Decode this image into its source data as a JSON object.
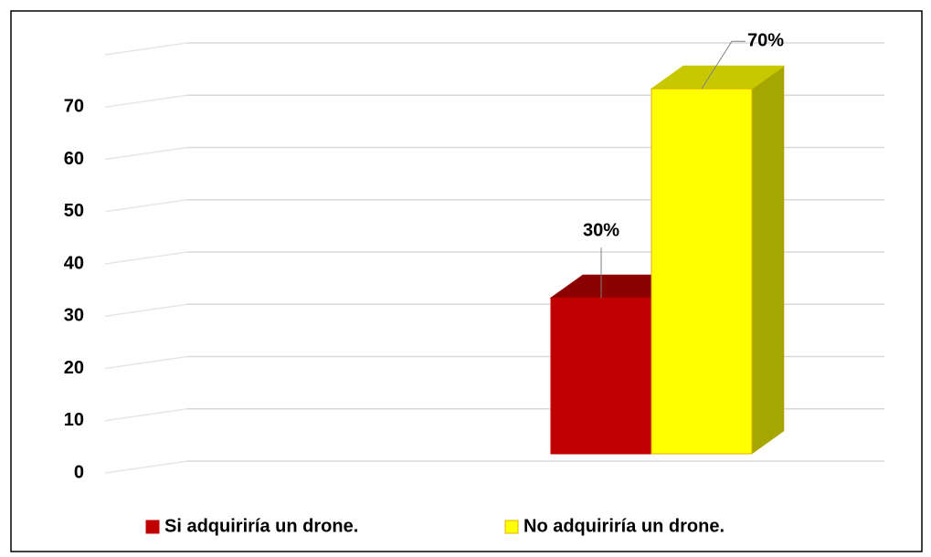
{
  "chart_data": {
    "type": "bar3d",
    "categories": [
      null
    ],
    "series": [
      {
        "name": "Si adquiriría un drone.",
        "color": "#c00000",
        "values": [
          30
        ],
        "value_labels": [
          "30%"
        ]
      },
      {
        "name": "No adquiriría un drone.",
        "color": "#ffff00",
        "values": [
          70
        ],
        "value_labels": [
          "70%"
        ]
      }
    ],
    "ylim": [
      0,
      80
    ],
    "yticks": [
      0,
      10,
      20,
      30,
      40,
      50,
      60,
      70
    ],
    "grid": true,
    "legend": "bottom"
  }
}
